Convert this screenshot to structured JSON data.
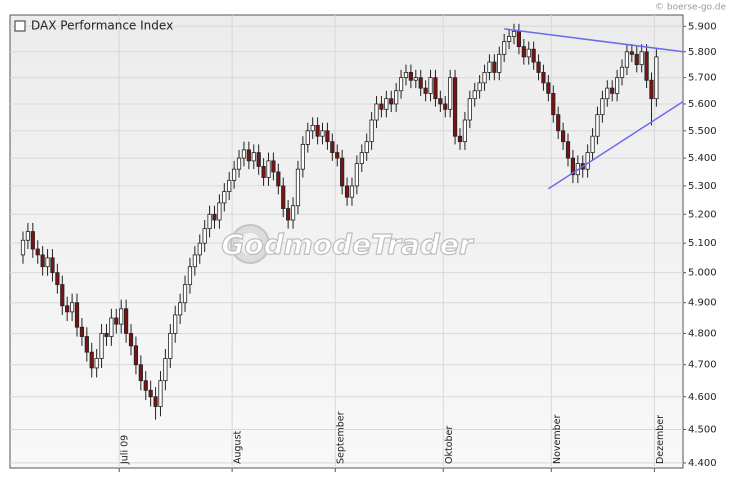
{
  "chart_data": {
    "type": "candlestick",
    "copyright": "© boerse-go.de",
    "watermark": "GodmodeTrader",
    "log_scale": true,
    "grid": true,
    "up_color": "#ffffff",
    "down_color": "#7a1414",
    "categories": [
      null,
      null,
      null,
      null,
      null,
      null,
      null,
      null,
      null,
      null,
      null,
      null,
      null,
      null,
      null,
      null,
      null,
      null,
      null,
      null,
      "Juli 09",
      null,
      null,
      null,
      null,
      null,
      null,
      null,
      null,
      null,
      null,
      null,
      null,
      null,
      null,
      null,
      null,
      null,
      null,
      null,
      null,
      null,
      null,
      "August",
      null,
      null,
      null,
      null,
      null,
      null,
      null,
      null,
      null,
      null,
      null,
      null,
      null,
      null,
      null,
      null,
      null,
      null,
      null,
      null,
      "September",
      null,
      null,
      null,
      null,
      null,
      null,
      null,
      null,
      null,
      null,
      null,
      null,
      null,
      null,
      null,
      null,
      null,
      null,
      null,
      null,
      null,
      "Oktober",
      null,
      null,
      null,
      null,
      null,
      null,
      null,
      null,
      null,
      null,
      null,
      null,
      null,
      null,
      null,
      null,
      null,
      null,
      null,
      null,
      null,
      "November",
      null,
      null,
      null,
      null,
      null,
      null,
      null,
      null,
      null,
      null,
      null,
      null,
      null,
      null,
      null,
      null,
      null,
      null,
      null,
      null,
      "Dezember"
    ],
    "series": [
      {
        "name": "DAX Performance Index",
        "open": [
          5060,
          5110,
          5140,
          5080,
          5060,
          5020,
          5050,
          5000,
          4960,
          4890,
          4870,
          4900,
          4820,
          4790,
          4740,
          4690,
          4720,
          4800,
          4790,
          4850,
          4830,
          4880,
          4800,
          4760,
          4700,
          4650,
          4620,
          4600,
          4570,
          4650,
          4720,
          4800,
          4860,
          4900,
          4960,
          5020,
          5060,
          5100,
          5150,
          5200,
          5180,
          5240,
          5280,
          5320,
          5360,
          5400,
          5430,
          5390,
          5420,
          5370,
          5330,
          5390,
          5350,
          5300,
          5220,
          5180,
          5230,
          5360,
          5450,
          5500,
          5520,
          5480,
          5500,
          5460,
          5420,
          5400,
          5300,
          5260,
          5300,
          5380,
          5420,
          5460,
          5540,
          5600,
          5580,
          5620,
          5600,
          5650,
          5700,
          5720,
          5690,
          5700,
          5660,
          5640,
          5700,
          5620,
          5600,
          5580,
          5700,
          5480,
          5460,
          5540,
          5620,
          5650,
          5680,
          5720,
          5760,
          5720,
          5790,
          5840,
          5860,
          5880,
          5820,
          5780,
          5810,
          5760,
          5720,
          5680,
          5640,
          5560,
          5500,
          5460,
          5400,
          5340,
          5380,
          5360,
          5420,
          5480,
          5560,
          5620,
          5660,
          5640,
          5700,
          5740,
          5800,
          5790,
          5750,
          5800,
          5690,
          5620
        ],
        "high": [
          5140,
          5170,
          5170,
          5110,
          5090,
          5080,
          5080,
          5030,
          4990,
          4920,
          4930,
          4930,
          4850,
          4820,
          4770,
          4750,
          4830,
          4830,
          4880,
          4880,
          4910,
          4910,
          4830,
          4790,
          4730,
          4680,
          4650,
          4630,
          4680,
          4750,
          4830,
          4890,
          4930,
          4990,
          5050,
          5090,
          5130,
          5180,
          5230,
          5230,
          5270,
          5310,
          5350,
          5390,
          5430,
          5460,
          5460,
          5450,
          5450,
          5400,
          5420,
          5420,
          5380,
          5330,
          5250,
          5260,
          5390,
          5480,
          5530,
          5550,
          5550,
          5530,
          5530,
          5490,
          5450,
          5430,
          5330,
          5330,
          5410,
          5450,
          5490,
          5570,
          5630,
          5630,
          5650,
          5650,
          5680,
          5730,
          5750,
          5750,
          5730,
          5730,
          5690,
          5730,
          5730,
          5650,
          5630,
          5730,
          5730,
          5510,
          5570,
          5650,
          5680,
          5710,
          5750,
          5790,
          5790,
          5820,
          5870,
          5890,
          5910,
          5910,
          5850,
          5840,
          5840,
          5790,
          5750,
          5710,
          5670,
          5590,
          5530,
          5490,
          5430,
          5410,
          5410,
          5450,
          5510,
          5590,
          5650,
          5690,
          5690,
          5730,
          5770,
          5830,
          5830,
          5820,
          5830,
          5830,
          5720,
          5810
        ],
        "low": [
          5030,
          5080,
          5050,
          5030,
          4990,
          4990,
          4970,
          4930,
          4860,
          4840,
          4840,
          4790,
          4760,
          4710,
          4660,
          4660,
          4690,
          4760,
          4760,
          4800,
          4800,
          4770,
          4730,
          4670,
          4620,
          4590,
          4570,
          4530,
          4540,
          4620,
          4690,
          4770,
          4830,
          4870,
          4930,
          4990,
          5030,
          5070,
          5120,
          5150,
          5150,
          5210,
          5250,
          5290,
          5330,
          5370,
          5360,
          5360,
          5340,
          5300,
          5300,
          5320,
          5270,
          5190,
          5150,
          5150,
          5200,
          5330,
          5420,
          5470,
          5450,
          5450,
          5430,
          5390,
          5370,
          5270,
          5230,
          5230,
          5270,
          5350,
          5390,
          5430,
          5510,
          5550,
          5550,
          5570,
          5570,
          5620,
          5670,
          5660,
          5660,
          5630,
          5610,
          5610,
          5590,
          5570,
          5550,
          5550,
          5450,
          5430,
          5430,
          5510,
          5590,
          5620,
          5650,
          5690,
          5690,
          5690,
          5760,
          5810,
          5830,
          5790,
          5750,
          5750,
          5730,
          5690,
          5650,
          5610,
          5530,
          5470,
          5430,
          5370,
          5310,
          5310,
          5330,
          5330,
          5390,
          5450,
          5530,
          5590,
          5610,
          5610,
          5670,
          5710,
          5760,
          5720,
          5720,
          5660,
          5520,
          5590
        ],
        "close": [
          5110,
          5140,
          5080,
          5060,
          5020,
          5050,
          5000,
          4960,
          4890,
          4870,
          4900,
          4820,
          4790,
          4740,
          4690,
          4720,
          4800,
          4790,
          4850,
          4830,
          4880,
          4800,
          4760,
          4700,
          4650,
          4620,
          4600,
          4570,
          4650,
          4720,
          4800,
          4860,
          4900,
          4960,
          5020,
          5060,
          5100,
          5150,
          5200,
          5180,
          5240,
          5280,
          5320,
          5360,
          5400,
          5430,
          5390,
          5420,
          5370,
          5330,
          5390,
          5350,
          5300,
          5220,
          5180,
          5230,
          5360,
          5450,
          5500,
          5520,
          5480,
          5500,
          5460,
          5420,
          5400,
          5300,
          5260,
          5300,
          5380,
          5420,
          5460,
          5540,
          5600,
          5580,
          5620,
          5600,
          5650,
          5700,
          5720,
          5690,
          5700,
          5660,
          5640,
          5700,
          5620,
          5600,
          5580,
          5700,
          5480,
          5460,
          5540,
          5620,
          5650,
          5680,
          5720,
          5760,
          5720,
          5790,
          5840,
          5860,
          5880,
          5820,
          5780,
          5810,
          5760,
          5720,
          5680,
          5640,
          5560,
          5500,
          5460,
          5400,
          5340,
          5380,
          5360,
          5420,
          5480,
          5560,
          5620,
          5660,
          5640,
          5700,
          5740,
          5800,
          5790,
          5750,
          5800,
          5690,
          5620,
          5780
        ]
      }
    ],
    "trendlines": [
      {
        "color": "#6b6bf0",
        "x": [
          98,
          134.5
        ],
        "values": [
          5890,
          5800
        ]
      },
      {
        "color": "#6b6bf0",
        "x": [
          107,
          134.5
        ],
        "values": [
          5290,
          5610
        ]
      }
    ],
    "ylim": [
      4385,
      5945
    ],
    "yticks": [
      {
        "value": 4400,
        "label": "4.400"
      },
      {
        "value": 4500,
        "label": "4.500"
      },
      {
        "value": 4600,
        "label": "4.600"
      },
      {
        "value": 4700,
        "label": "4.700"
      },
      {
        "value": 4800,
        "label": "4.800"
      },
      {
        "value": 4900,
        "label": "4.900"
      },
      {
        "value": 5000,
        "label": "5.000"
      },
      {
        "value": 5100,
        "label": "5.100"
      },
      {
        "value": 5200,
        "label": "5.200"
      },
      {
        "value": 5300,
        "label": "5.300"
      },
      {
        "value": 5400,
        "label": "5.400"
      },
      {
        "value": 5500,
        "label": "5.500"
      },
      {
        "value": 5600,
        "label": "5.600"
      },
      {
        "value": 5700,
        "label": "5.700"
      },
      {
        "value": 5800,
        "label": "5.800"
      },
      {
        "value": 5900,
        "label": "5.900"
      }
    ]
  }
}
